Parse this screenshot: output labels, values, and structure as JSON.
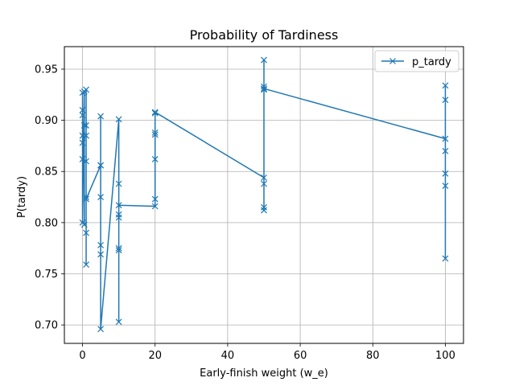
{
  "chart_data": {
    "type": "line",
    "title": "Probability of Tardiness",
    "xlabel": "Early-finish weight (w_e)",
    "ylabel": "P(tardy)",
    "xlim": [
      -5,
      105
    ],
    "ylim": [
      0.682,
      0.972
    ],
    "xticks": [
      0,
      20,
      40,
      60,
      80,
      100
    ],
    "yticks": [
      0.7,
      0.75,
      0.8,
      0.85,
      0.9,
      0.95
    ],
    "xtick_labels": [
      "0",
      "20",
      "40",
      "60",
      "80",
      "100"
    ],
    "ytick_labels": [
      "0.70",
      "0.75",
      "0.80",
      "0.85",
      "0.90",
      "0.95"
    ],
    "grid": true,
    "legend_position": "top-right",
    "line_color": "#1f77b4",
    "series": [
      {
        "name": "p_tardy",
        "marker": "x",
        "points": [
          [
            0,
            0.8
          ],
          [
            0,
            0.862
          ],
          [
            0,
            0.878
          ],
          [
            0,
            0.885
          ],
          [
            0,
            0.905
          ],
          [
            0,
            0.91
          ],
          [
            0,
            0.927
          ],
          [
            0.5,
            0.798
          ],
          [
            0.5,
            0.895
          ],
          [
            0.5,
            0.928
          ],
          [
            1,
            0.93
          ],
          [
            1,
            0.895
          ],
          [
            1,
            0.885
          ],
          [
            1,
            0.86
          ],
          [
            1,
            0.825
          ],
          [
            1,
            0.79
          ],
          [
            1,
            0.759
          ],
          [
            1,
            0.823
          ],
          [
            5,
            0.856
          ],
          [
            5,
            0.904
          ],
          [
            5,
            0.856
          ],
          [
            5,
            0.825
          ],
          [
            5,
            0.778
          ],
          [
            5,
            0.769
          ],
          [
            5,
            0.696
          ],
          [
            10,
            0.901
          ],
          [
            10,
            0.838
          ],
          [
            10,
            0.808
          ],
          [
            10,
            0.805
          ],
          [
            10,
            0.775
          ],
          [
            10,
            0.773
          ],
          [
            10,
            0.703
          ],
          [
            10,
            0.817
          ],
          [
            20,
            0.816
          ],
          [
            20,
            0.823
          ],
          [
            20,
            0.862
          ],
          [
            20,
            0.886
          ],
          [
            20,
            0.888
          ],
          [
            20,
            0.907
          ],
          [
            20,
            0.908
          ],
          [
            50,
            0.844
          ],
          [
            50,
            0.959
          ],
          [
            50,
            0.933
          ],
          [
            50,
            0.93
          ],
          [
            50,
            0.838
          ],
          [
            50,
            0.815
          ],
          [
            50,
            0.812
          ],
          [
            50,
            0.931
          ],
          [
            100,
            0.882
          ],
          [
            100,
            0.934
          ],
          [
            100,
            0.92
          ],
          [
            100,
            0.87
          ],
          [
            100,
            0.848
          ],
          [
            100,
            0.836
          ],
          [
            100,
            0.765
          ]
        ]
      }
    ]
  }
}
